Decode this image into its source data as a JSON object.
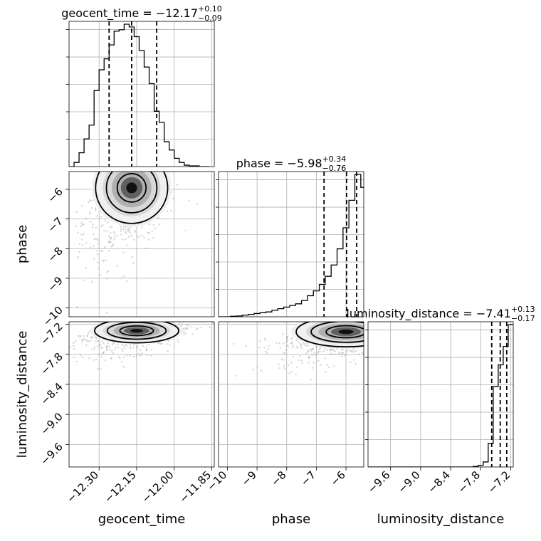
{
  "chart_data": {
    "type": "corner",
    "parameters": [
      "geocent_time",
      "phase",
      "luminosity_distance"
    ],
    "axis_labels": {
      "geocent_time": "geocent_time",
      "phase": "phase",
      "luminosity_distance": "luminosity_distance"
    },
    "titles": [
      {
        "param": "geocent_time",
        "prefix": "geocent_time = ",
        "median": "−12.17",
        "plus": "+0.10",
        "minus": "−0.09"
      },
      {
        "param": "phase",
        "prefix": "phase = ",
        "median": "−5.98",
        "plus": "+0.34",
        "minus": "−0.76"
      },
      {
        "param": "luminosity_distance",
        "prefix": "luminosity_distance = ",
        "median": "−7.41",
        "plus": "+0.13",
        "minus": "−0.17"
      }
    ],
    "ranges": {
      "geocent_time": [
        -12.42,
        -11.84
      ],
      "phase": [
        -10.3,
        -5.4
      ],
      "luminosity_distance": [
        -10.05,
        -7.15
      ]
    },
    "ticks": {
      "geocent_time": {
        "values": [
          -12.3,
          -12.15,
          -12.0,
          -11.85
        ],
        "labels": [
          "−12.30",
          "−12.15",
          "−12.00",
          "−11.85"
        ]
      },
      "phase": {
        "values": [
          -10,
          -9,
          -8,
          -7,
          -6
        ],
        "labels": [
          "−10",
          "−9",
          "−8",
          "−7",
          "−6"
        ]
      },
      "luminosity_distance": {
        "values": [
          -9.6,
          -9.0,
          -8.4,
          -7.8,
          -7.2
        ],
        "labels": [
          "−9.6",
          "−9.0",
          "−8.4",
          "−7.8",
          "−7.2"
        ]
      }
    },
    "quantiles": {
      "geocent_time": [
        -12.26,
        -12.17,
        -12.07
      ],
      "phase": [
        -6.74,
        -5.98,
        -5.64
      ],
      "luminosity_distance": [
        -7.58,
        -7.41,
        -7.28
      ]
    },
    "histograms": {
      "geocent_time": {
        "edges": [
          -12.42,
          -12.4,
          -12.38,
          -12.36,
          -12.34,
          -12.32,
          -12.3,
          -12.28,
          -12.26,
          -12.24,
          -12.22,
          -12.2,
          -12.18,
          -12.16,
          -12.14,
          -12.12,
          -12.1,
          -12.08,
          -12.06,
          -12.04,
          -12.02,
          -12.0,
          -11.98,
          -11.96,
          -11.94,
          -11.92,
          -11.9,
          -11.88,
          -11.86
        ],
        "counts": [
          0,
          3,
          10,
          20,
          30,
          55,
          70,
          78,
          88,
          98,
          99,
          103,
          101,
          94,
          84,
          72,
          60,
          40,
          32,
          18,
          12,
          6,
          3,
          1,
          0.5,
          0.5,
          0,
          0
        ]
      },
      "phase": {
        "edges": [
          -10.3,
          -10.1,
          -9.9,
          -9.7,
          -9.5,
          -9.3,
          -9.1,
          -8.9,
          -8.7,
          -8.5,
          -8.3,
          -8.1,
          -7.9,
          -7.7,
          -7.5,
          -7.3,
          -7.1,
          -6.9,
          -6.7,
          -6.5,
          -6.3,
          -6.1,
          -5.9,
          -5.7,
          -5.5,
          -5.4
        ],
        "counts": [
          0,
          0,
          0.3,
          0.5,
          1,
          1.5,
          2,
          2.5,
          3,
          4,
          5,
          6,
          7,
          8,
          10,
          13,
          16,
          20,
          25,
          32,
          42,
          55,
          72,
          88,
          80
        ]
      },
      "luminosity_distance": {
        "edges": [
          -10.05,
          -9.95,
          -9.85,
          -9.75,
          -9.65,
          -9.55,
          -9.45,
          -9.35,
          -9.25,
          -9.15,
          -9.05,
          -8.95,
          -8.85,
          -8.75,
          -8.65,
          -8.55,
          -8.45,
          -8.35,
          -8.25,
          -8.15,
          -8.05,
          -7.95,
          -7.85,
          -7.75,
          -7.65,
          -7.55,
          -7.45,
          -7.35,
          -7.25,
          -7.15
        ],
        "counts": [
          0,
          0,
          0,
          0,
          0,
          0,
          0,
          0,
          0,
          0,
          0,
          0,
          0,
          0,
          0,
          0,
          0,
          0,
          0,
          0,
          0,
          0.3,
          1,
          3,
          14,
          48,
          61,
          72,
          85
        ]
      }
    },
    "pairs": [
      {
        "x": "geocent_time",
        "y": "phase",
        "center": [
          -12.17,
          -5.95
        ],
        "spread": [
          0.06,
          0.6
        ]
      },
      {
        "x": "geocent_time",
        "y": "luminosity_distance",
        "center": [
          -12.15,
          -7.33
        ],
        "spread": [
          0.07,
          0.12
        ]
      },
      {
        "x": "phase",
        "y": "luminosity_distance",
        "center": [
          -6.0,
          -7.35
        ],
        "spread": [
          0.7,
          0.15
        ]
      }
    ],
    "grid": true
  }
}
